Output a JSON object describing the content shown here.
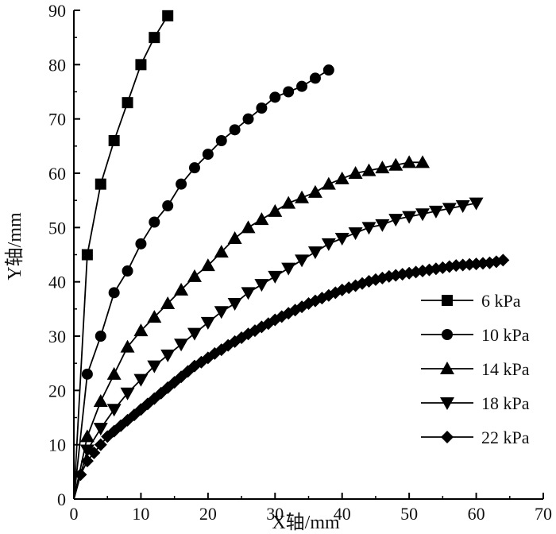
{
  "chart_data": {
    "type": "line",
    "title": "",
    "xlabel": "X轴/mm",
    "ylabel": "Y轴/mm",
    "xlim": [
      0,
      70
    ],
    "ylim": [
      0,
      90
    ],
    "xticks": [
      "0",
      "10",
      "20",
      "30",
      "40",
      "50",
      "60",
      "70"
    ],
    "yticks": [
      "0",
      "10",
      "20",
      "30",
      "40",
      "50",
      "60",
      "70",
      "80",
      "90"
    ],
    "grid": false,
    "legend_position": "bottom-right",
    "series": [
      {
        "name": "6 kPa",
        "marker": "square",
        "x": [
          0,
          2,
          4,
          6,
          8,
          10,
          12,
          14
        ],
        "y": [
          0,
          45,
          58,
          66,
          73,
          80,
          85,
          89
        ]
      },
      {
        "name": "10 kPa",
        "marker": "circle",
        "x": [
          0,
          2,
          4,
          6,
          8,
          10,
          12,
          14,
          16,
          18,
          20,
          22,
          24,
          26,
          28,
          30,
          32,
          34,
          36,
          38
        ],
        "y": [
          0,
          23,
          30,
          38,
          42,
          47,
          51,
          54,
          58,
          61,
          63.5,
          66,
          68,
          70,
          72,
          74,
          75,
          76,
          77.5,
          79
        ]
      },
      {
        "name": "14 kPa",
        "marker": "triangle-up",
        "x": [
          0,
          2,
          4,
          6,
          8,
          10,
          12,
          14,
          16,
          18,
          20,
          22,
          24,
          26,
          28,
          30,
          32,
          34,
          36,
          38,
          40,
          42,
          44,
          46,
          48,
          50,
          52
        ],
        "y": [
          0,
          11.5,
          18,
          23,
          28,
          31,
          33.5,
          36,
          38.5,
          41,
          43,
          45.5,
          48,
          50,
          51.5,
          53,
          54.5,
          55.5,
          56.5,
          58,
          59,
          60,
          60.5,
          61,
          61.5,
          62,
          62
        ]
      },
      {
        "name": "18 kPa",
        "marker": "triangle-down",
        "x": [
          0,
          2,
          4,
          6,
          8,
          10,
          12,
          14,
          16,
          18,
          20,
          22,
          24,
          26,
          28,
          30,
          32,
          34,
          36,
          38,
          40,
          42,
          44,
          46,
          48,
          50,
          52,
          54,
          56,
          58,
          60
        ],
        "y": [
          0,
          9,
          13,
          16.5,
          19.5,
          22,
          24.5,
          26.5,
          28.5,
          30.5,
          32.5,
          34.5,
          36,
          38,
          39.5,
          41,
          42.5,
          44,
          45.5,
          47,
          48,
          49,
          50,
          50.5,
          51.5,
          52,
          52.5,
          53,
          53.5,
          54,
          54.5
        ]
      },
      {
        "name": "22 kPa",
        "marker": "diamond",
        "x": [
          0,
          1,
          2,
          3,
          4,
          5,
          6,
          7,
          8,
          9,
          10,
          11,
          12,
          13,
          14,
          15,
          16,
          17,
          18,
          19,
          20,
          21,
          22,
          23,
          24,
          25,
          26,
          27,
          28,
          29,
          30,
          31,
          32,
          33,
          34,
          35,
          36,
          37,
          38,
          39,
          40,
          41,
          42,
          43,
          44,
          45,
          46,
          47,
          48,
          49,
          50,
          51,
          52,
          53,
          54,
          55,
          56,
          57,
          58,
          59,
          60,
          61,
          62,
          63,
          64
        ],
        "y": [
          0,
          4.5,
          7,
          8.5,
          10,
          11.5,
          12.5,
          13.5,
          14.5,
          15.5,
          16.5,
          17.5,
          18.5,
          19.5,
          20.5,
          21.5,
          22.5,
          23.5,
          24.5,
          25.2,
          26,
          26.8,
          27.5,
          28.3,
          29,
          29.7,
          30.4,
          31,
          31.7,
          32.3,
          33,
          33.6,
          34.2,
          34.8,
          35.4,
          36,
          36.5,
          37,
          37.5,
          38,
          38.5,
          38.9,
          39.3,
          39.7,
          40.1,
          40.4,
          40.7,
          41,
          41.2,
          41.4,
          41.6,
          41.8,
          42,
          42.2,
          42.4,
          42.6,
          42.8,
          43,
          43.1,
          43.2,
          43.3,
          43.4,
          43.5,
          43.7,
          44
        ]
      }
    ]
  }
}
